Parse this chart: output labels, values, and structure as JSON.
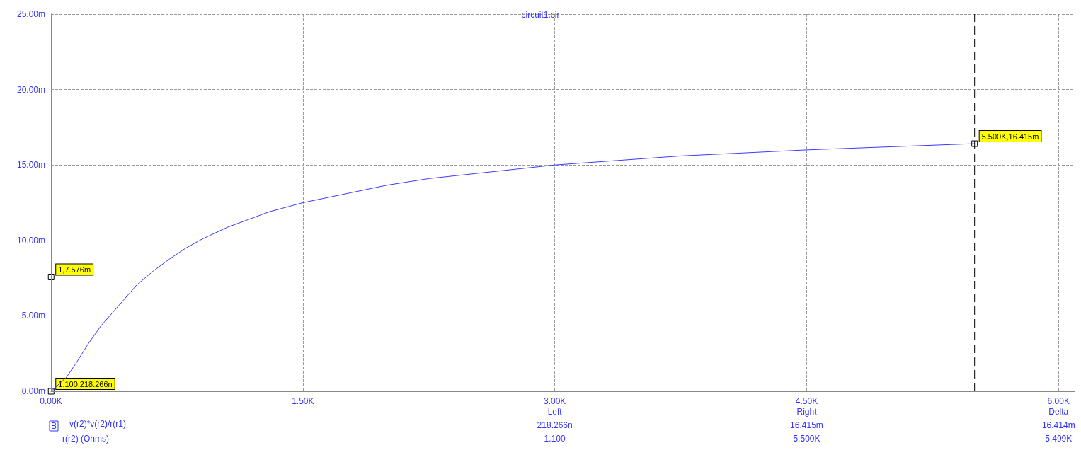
{
  "chart_data": {
    "type": "line",
    "title": "circuit1.cir",
    "xlabel": "r(r2) (Ohms)",
    "series": [
      {
        "name": "v(r2)*v(r2)/r(r1)",
        "color": "#3a3aff",
        "x": [
          1.1,
          92,
          150,
          220,
          300,
          350,
          430,
          510,
          610,
          705,
          800,
          900,
          1050,
          1300,
          1500,
          2000,
          2250,
          3000,
          3750,
          4500,
          5500
        ],
        "values": [
          0,
          0.93,
          1.87,
          3.12,
          4.37,
          5,
          6.02,
          7.04,
          7.98,
          8.76,
          9.47,
          10.09,
          10.87,
          11.9,
          12.5,
          13.66,
          14.1,
          15,
          15.6,
          16,
          16.415
        ]
      }
    ],
    "xlim": [
      0,
      6100
    ],
    "xticks": [
      {
        "value": 0,
        "label": "0.00K"
      },
      {
        "value": 1500,
        "label": "1.50K"
      },
      {
        "value": 3000,
        "label": "3.00K"
      },
      {
        "value": 4500,
        "label": "4.50K"
      },
      {
        "value": 6000,
        "label": "6.00K"
      }
    ],
    "ylim": [
      0,
      25
    ],
    "yticks": [
      {
        "value": 0,
        "label": "0.00m"
      },
      {
        "value": 5,
        "label": "5.00m"
      },
      {
        "value": 10,
        "label": "10.00m"
      },
      {
        "value": 15,
        "label": "15.00m"
      },
      {
        "value": 20,
        "label": "20.00m"
      },
      {
        "value": 25,
        "label": "25.00m"
      }
    ],
    "grid": true,
    "legend": "bottom left",
    "marker": "none",
    "line_style": "solid",
    "ref_lines": [
      {
        "axis": "x",
        "value": 5500,
        "color": "#000000",
        "line_style": "dashed"
      }
    ],
    "annotations": [
      {
        "text": "1.100,218.266n",
        "x": 1.1,
        "y": 0
      },
      {
        "text": "5.500K,16.415m",
        "x": 5500,
        "y": 16.415
      },
      {
        "text": "1,7.576m",
        "x": 1,
        "y": 7.576
      },
      "Left",
      "Right",
      "Delta",
      "218.266n",
      "16.415m",
      "16.414m",
      "1.100",
      "5.500K",
      "5.499K",
      "B"
    ]
  }
}
